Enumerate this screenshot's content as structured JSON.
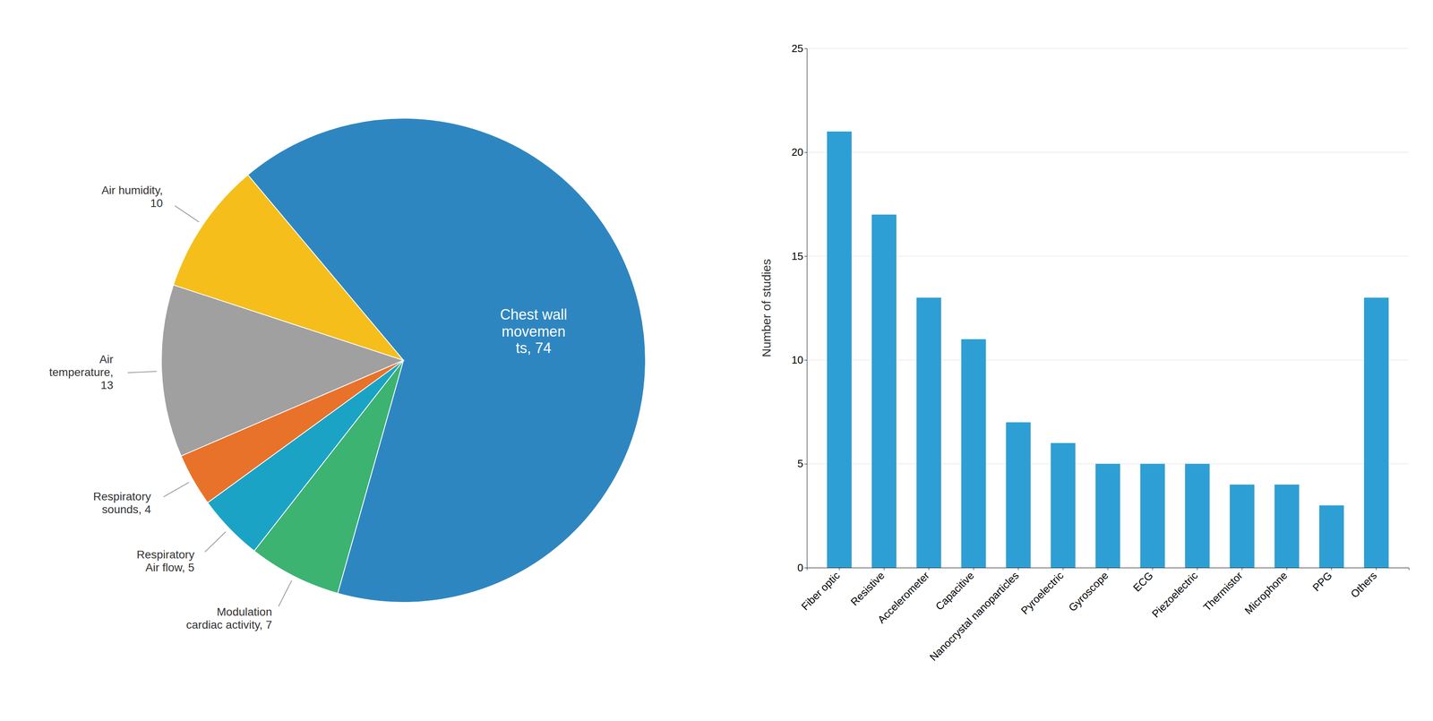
{
  "chart_data": [
    {
      "type": "pie",
      "values": [
        74,
        7,
        5,
        4,
        13,
        10
      ],
      "value_labels": [
        "Chest wall\nmovemen\nts, 74",
        "Modulation\ncardiac activity, 7",
        "Respiratory\nAir flow, 5",
        "Respiratory\nsounds, 4",
        "Air\ntemperature,\n13",
        "Air humidity,\n10"
      ],
      "colors": [
        "#2E86C1",
        "#3CB371",
        "#1BA3C6",
        "#E8722A",
        "#A0A0A0",
        "#F5BE1A"
      ],
      "data_labels": true
    },
    {
      "type": "bar",
      "categories": [
        "Fiber optic",
        "Resistive",
        "Accelerometer",
        "Capacitive",
        "Nanocrystal nanoparticles",
        "Pyroelectric",
        "Gyroscope",
        "ECG",
        "Piezoelectric",
        "Thermistor",
        "Microphone",
        "PPG",
        "Others"
      ],
      "values": [
        21,
        17,
        13,
        11,
        7,
        6,
        5,
        5,
        5,
        4,
        4,
        3,
        13
      ],
      "color": "#2E9FD4",
      "ylabel": "Number of studies",
      "ylim": [
        0,
        25
      ],
      "yticks": [
        0,
        5,
        10,
        15,
        20,
        25
      ],
      "grid": true
    }
  ]
}
